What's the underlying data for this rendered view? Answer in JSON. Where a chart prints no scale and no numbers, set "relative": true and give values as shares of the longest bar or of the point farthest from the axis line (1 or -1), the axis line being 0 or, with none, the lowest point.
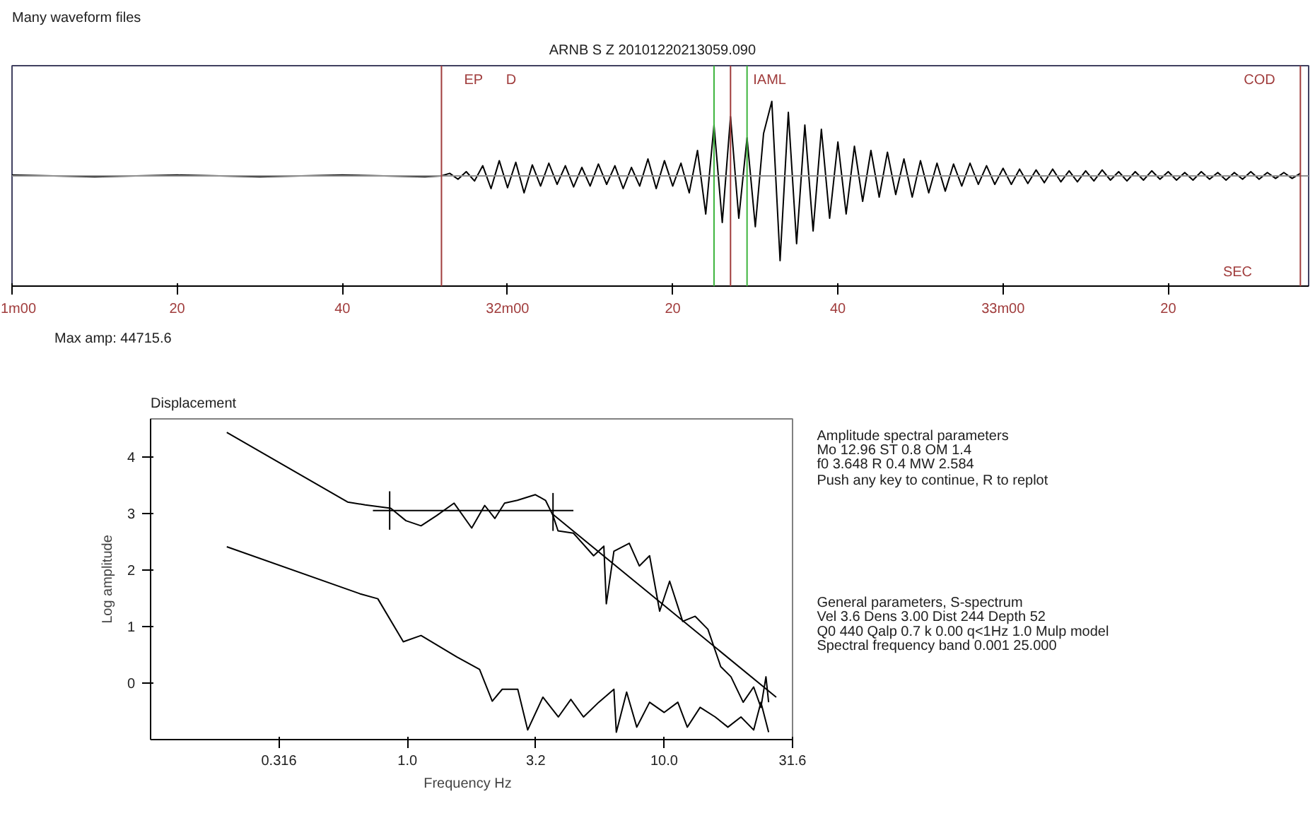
{
  "chart_data": [
    {
      "type": "line",
      "title": "Many waveform files",
      "subtitle": "ARNB  S  Z   20101220213059.090",
      "relative": true,
      "color": "#000000",
      "x": [
        "2010-12-20T21:31:00",
        "2010-12-20T21:31:10",
        "2010-12-20T21:31:20",
        "2010-12-20T21:31:30",
        "2010-12-20T21:31:40",
        "2010-12-20T21:31:50",
        "2010-12-20T21:31:52",
        "2010-12-20T21:31:53",
        "2010-12-20T21:31:54",
        "2010-12-20T21:31:55",
        "2010-12-20T21:31:56",
        "2010-12-20T21:31:57",
        "2010-12-20T21:31:58",
        "2010-12-20T21:31:59",
        "2010-12-20T21:32:00",
        "2010-12-20T21:32:01",
        "2010-12-20T21:32:02",
        "2010-12-20T21:32:03",
        "2010-12-20T21:32:04",
        "2010-12-20T21:32:05",
        "2010-12-20T21:32:06",
        "2010-12-20T21:32:07",
        "2010-12-20T21:32:08",
        "2010-12-20T21:32:09",
        "2010-12-20T21:32:10",
        "2010-12-20T21:32:11",
        "2010-12-20T21:32:12",
        "2010-12-20T21:32:13",
        "2010-12-20T21:32:14",
        "2010-12-20T21:32:15",
        "2010-12-20T21:32:16",
        "2010-12-20T21:32:17",
        "2010-12-20T21:32:18",
        "2010-12-20T21:32:19",
        "2010-12-20T21:32:20",
        "2010-12-20T21:32:21",
        "2010-12-20T21:32:22",
        "2010-12-20T21:32:23",
        "2010-12-20T21:32:24",
        "2010-12-20T21:32:25",
        "2010-12-20T21:32:26",
        "2010-12-20T21:32:27",
        "2010-12-20T21:32:28",
        "2010-12-20T21:32:29",
        "2010-12-20T21:32:30",
        "2010-12-20T21:32:31",
        "2010-12-20T21:32:32",
        "2010-12-20T21:32:33",
        "2010-12-20T21:32:34",
        "2010-12-20T21:32:35",
        "2010-12-20T21:32:36",
        "2010-12-20T21:32:37",
        "2010-12-20T21:32:38",
        "2010-12-20T21:32:39",
        "2010-12-20T21:32:40",
        "2010-12-20T21:32:41",
        "2010-12-20T21:32:42",
        "2010-12-20T21:32:43",
        "2010-12-20T21:32:44",
        "2010-12-20T21:32:45",
        "2010-12-20T21:32:46",
        "2010-12-20T21:32:47",
        "2010-12-20T21:32:48",
        "2010-12-20T21:32:49",
        "2010-12-20T21:32:50",
        "2010-12-20T21:32:51",
        "2010-12-20T21:32:52",
        "2010-12-20T21:32:53",
        "2010-12-20T21:32:54",
        "2010-12-20T21:32:55",
        "2010-12-20T21:32:56",
        "2010-12-20T21:32:57",
        "2010-12-20T21:32:58",
        "2010-12-20T21:32:59",
        "2010-12-20T21:33:00",
        "2010-12-20T21:33:01",
        "2010-12-20T21:33:02",
        "2010-12-20T21:33:03",
        "2010-12-20T21:33:04",
        "2010-12-20T21:33:05",
        "2010-12-20T21:33:06",
        "2010-12-20T21:33:07",
        "2010-12-20T21:33:08",
        "2010-12-20T21:33:09",
        "2010-12-20T21:33:10",
        "2010-12-20T21:33:11",
        "2010-12-20T21:33:12",
        "2010-12-20T21:33:13",
        "2010-12-20T21:33:14",
        "2010-12-20T21:33:15",
        "2010-12-20T21:33:16",
        "2010-12-20T21:33:17",
        "2010-12-20T21:33:18",
        "2010-12-20T21:33:19",
        "2010-12-20T21:33:20",
        "2010-12-20T21:33:21",
        "2010-12-20T21:33:22",
        "2010-12-20T21:33:23",
        "2010-12-20T21:33:24",
        "2010-12-20T21:33:25",
        "2010-12-20T21:33:26",
        "2010-12-20T21:33:27",
        "2010-12-20T21:33:28",
        "2010-12-20T21:33:29",
        "2010-12-20T21:33:30",
        "2010-12-20T21:33:31",
        "2010-12-20T21:33:32",
        "2010-12-20T21:33:33",
        "2010-12-20T21:33:34",
        "2010-12-20T21:33:35",
        "2010-12-20T21:33:36"
      ],
      "values": [
        0.01,
        -0.01,
        0.01,
        -0.01,
        0.01,
        -0.01,
        0,
        0.03,
        -0.04,
        0.05,
        -0.06,
        0.12,
        -0.15,
        0.18,
        -0.14,
        0.16,
        -0.2,
        0.13,
        -0.12,
        0.15,
        -0.1,
        0.12,
        -0.13,
        0.1,
        -0.12,
        0.14,
        -0.1,
        0.12,
        -0.15,
        0.1,
        -0.12,
        0.2,
        -0.15,
        0.18,
        -0.12,
        0.15,
        -0.2,
        0.3,
        -0.45,
        0.6,
        -0.55,
        0.7,
        -0.5,
        0.45,
        -0.6,
        0.5,
        0.88,
        -1,
        0.75,
        -0.8,
        0.6,
        -0.65,
        0.55,
        -0.5,
        0.4,
        -0.45,
        0.35,
        -0.3,
        0.3,
        -0.25,
        0.28,
        -0.22,
        0.2,
        -0.25,
        0.18,
        -0.2,
        0.15,
        -0.18,
        0.14,
        -0.12,
        0.15,
        -0.1,
        0.12,
        -0.1,
        0.09,
        -0.1,
        0.08,
        -0.09,
        0.07,
        -0.08,
        0.08,
        -0.07,
        0.06,
        -0.07,
        0.06,
        -0.06,
        0.07,
        -0.05,
        0.05,
        -0.06,
        0.05,
        -0.05,
        0.06,
        -0.04,
        0.05,
        -0.05,
        0.04,
        -0.05,
        0.05,
        -0.04,
        0.04,
        -0.05,
        0.04,
        -0.04,
        0.05,
        -0.04,
        0.04,
        -0.03,
        0.04,
        -0.03,
        0.03
      ],
      "xlim": [
        "2010-12-20T21:31:00",
        "2010-12-20T21:33:37"
      ],
      "xticks": [
        {
          "value": "2010-12-20T21:31:00",
          "label": "1m00"
        },
        {
          "value": "2010-12-20T21:31:20",
          "label": "20"
        },
        {
          "value": "2010-12-20T21:31:40",
          "label": "40"
        },
        {
          "value": "2010-12-20T21:32:00",
          "label": "32m00"
        },
        {
          "value": "2010-12-20T21:32:20",
          "label": "20"
        },
        {
          "value": "2010-12-20T21:32:40",
          "label": "40"
        },
        {
          "value": "2010-12-20T21:33:00",
          "label": "33m00"
        },
        {
          "value": "2010-12-20T21:33:20",
          "label": "20"
        }
      ],
      "ref_lines": [
        {
          "axis": "x",
          "value": "2010-12-20T21:31:52",
          "label": "EP",
          "color": "#a03c3c"
        },
        {
          "axis": "x",
          "value": "2010-12-20T21:32:25",
          "label": null,
          "color": "#3cb43c"
        },
        {
          "axis": "x",
          "value": "2010-12-20T21:32:29",
          "label": null,
          "color": "#3cb43c"
        },
        {
          "axis": "x",
          "value": "2010-12-20T21:32:27",
          "label": "IAML",
          "color": "#a03c3c"
        },
        {
          "axis": "x",
          "value": "2010-12-20T21:33:36",
          "label": "COD",
          "color": "#a03c3c"
        }
      ],
      "annotations": [
        "D",
        "Max amp:   44715.6",
        "SEC"
      ]
    },
    {
      "type": "line",
      "title": "Displacement",
      "xlabel": "Frequency   Hz",
      "ylabel": "Log amplitude",
      "log": "x",
      "xlim": [
        0.1,
        31.6
      ],
      "xticks": [
        {
          "value": 0.316,
          "label": "0.316"
        },
        {
          "value": 1,
          "label": "1.0"
        },
        {
          "value": 3.162,
          "label": "3.2"
        },
        {
          "value": 10,
          "label": "10.0"
        },
        {
          "value": 31.6,
          "label": "31.6"
        }
      ],
      "ylim": [
        -1,
        4.67
      ],
      "yticks": [
        0,
        1,
        2,
        3,
        4
      ],
      "series": [
        {
          "color": "#000000",
          "x": [
            0.198,
            0.585,
            0.685,
            0.861,
            0.987,
            1.13,
            1.3,
            1.52,
            1.78,
            2.0,
            2.19,
            2.39,
            2.68,
            3.15,
            3.45,
            3.69,
            3.86,
            4.43,
            5.31,
            5.82,
            5.95,
            6.37,
            7.31,
            8.0,
            8.77,
            9.6,
            10.5,
            11.8,
            13.2,
            14.8,
            16.6,
            18.2,
            20.3,
            22.3,
            23.8,
            24.9,
            25.5
          ],
          "values": [
            4.43,
            3.2,
            3.15,
            3.09,
            2.87,
            2.78,
            2.96,
            3.18,
            2.74,
            3.14,
            2.91,
            3.18,
            3.23,
            3.33,
            3.23,
            2.96,
            2.69,
            2.65,
            2.25,
            2.42,
            1.4,
            2.33,
            2.47,
            2.07,
            2.25,
            1.27,
            1.8,
            1.09,
            1.18,
            0.95,
            0.29,
            0.11,
            -0.34,
            -0.07,
            -0.43,
            0.11,
            -0.34
          ]
        },
        {
          "color": "#000000",
          "x": [
            0.198,
            0.652,
            0.767,
            0.964,
            1.13,
            1.56,
            1.91,
            2.14,
            2.34,
            2.69,
            2.94,
            3.37,
            3.87,
            4.33,
            4.85,
            5.56,
            6.37,
            6.51,
            7.14,
            7.82,
            8.77,
            10.0,
            11.3,
            12.3,
            13.8,
            15.8,
            17.7,
            19.9,
            22.3,
            23.8,
            25.5
          ],
          "values": [
            2.41,
            1.58,
            1.49,
            0.73,
            0.84,
            0.46,
            0.24,
            -0.32,
            -0.11,
            -0.11,
            -0.83,
            -0.25,
            -0.6,
            -0.29,
            -0.6,
            -0.34,
            -0.11,
            -0.87,
            -0.16,
            -0.78,
            -0.34,
            -0.52,
            -0.34,
            -0.78,
            -0.43,
            -0.6,
            -0.78,
            -0.6,
            -0.83,
            -0.34,
            -0.87
          ]
        },
        {
          "color": "#000000",
          "x": [
            0.734,
            4.43
          ],
          "values": [
            3.05,
            3.05
          ]
        },
        {
          "color": "#000000",
          "x": [
            3.69,
            27.3
          ],
          "values": [
            2.98,
            -0.25
          ]
        },
        {
          "color": "#000000",
          "x": [
            0.853,
            0.853
          ],
          "values": [
            3.39,
            2.71
          ]
        },
        {
          "color": "#000000",
          "x": [
            3.69,
            3.69
          ],
          "values": [
            3.36,
            2.69
          ]
        }
      ],
      "annotations": [
        "Amplitude spectral parameters",
        "Mo   12.96 ST      0.8 OM   1.4",
        "f0   3.648 R       0.4 MW  2.584",
        "Push any key to continue, R to replot",
        "General parameters, S-spectrum",
        "Vel    3.6 Dens  3.00 Dist    244 Depth   52",
        "Q0   440 Qalp 0.7 k 0.00 q<1Hz 1.0 Mulp model",
        "Spectral frequency band    0.001  25.000"
      ]
    }
  ]
}
